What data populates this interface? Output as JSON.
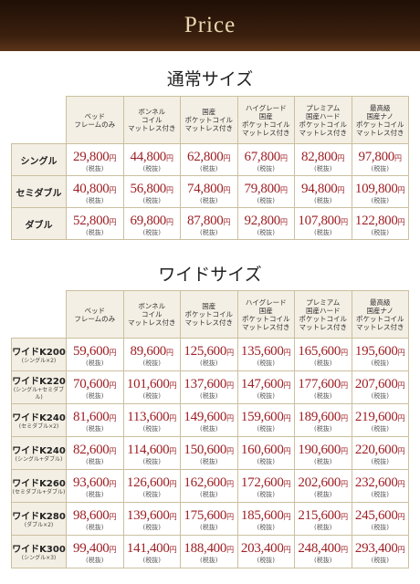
{
  "header": {
    "title": "Price"
  },
  "price_unit": "円",
  "tax_note": "(税抜)",
  "sections": [
    {
      "title": "通常サイズ",
      "columns": [
        "ベッド\nフレームのみ",
        "ボンネル\nコイル\nマットレス付き",
        "国産\nポケットコイル\nマットレス付き",
        "ハイグレード\n国産\nポケットコイル\nマットレス付き",
        "プレミアム\n国産ハード\nポケットコイル\nマットレス付き",
        "最高級\n国産ナノ\nポケットコイル\nマットレス付き"
      ],
      "rows": [
        {
          "label": "シングル",
          "prices": [
            "29,800",
            "44,800",
            "62,800",
            "67,800",
            "82,800",
            "97,800"
          ]
        },
        {
          "label": "セミダブル",
          "prices": [
            "40,800",
            "56,800",
            "74,800",
            "79,800",
            "94,800",
            "109,800"
          ]
        },
        {
          "label": "ダブル",
          "prices": [
            "52,800",
            "69,800",
            "87,800",
            "92,800",
            "107,800",
            "122,800"
          ]
        }
      ]
    },
    {
      "title": "ワイドサイズ",
      "columns": [
        "ベッド\nフレームのみ",
        "ボンネル\nコイル\nマットレス付き",
        "国産\nポケットコイル\nマットレス付き",
        "ハイグレード\n国産\nポケットコイル\nマットレス付き",
        "プレミアム\n国産ハード\nポケットコイル\nマットレス付き",
        "最高級\n国産ナノ\nポケットコイル\nマットレス付き"
      ],
      "rows": [
        {
          "label": "ワイドK200",
          "sublabel": "(シングル×2)",
          "prices": [
            "59,600",
            "89,600",
            "125,600",
            "135,600",
            "165,600",
            "195,600"
          ]
        },
        {
          "label": "ワイドK220",
          "sublabel": "(シングル+セミダブル)",
          "prices": [
            "70,600",
            "101,600",
            "137,600",
            "147,600",
            "177,600",
            "207,600"
          ]
        },
        {
          "label": "ワイドK240",
          "sublabel": "(セミダブル×2)",
          "prices": [
            "81,600",
            "113,600",
            "149,600",
            "159,600",
            "189,600",
            "219,600"
          ]
        },
        {
          "label": "ワイドK240",
          "sublabel": "(シングル+ダブル)",
          "prices": [
            "82,600",
            "114,600",
            "150,600",
            "160,600",
            "190,600",
            "220,600"
          ]
        },
        {
          "label": "ワイドK260",
          "sublabel": "(セミダブル+ダブル)",
          "prices": [
            "93,600",
            "126,600",
            "162,600",
            "172,600",
            "202,600",
            "232,600"
          ]
        },
        {
          "label": "ワイドK280",
          "sublabel": "(ダブル×2)",
          "prices": [
            "98,600",
            "139,600",
            "175,600",
            "185,600",
            "215,600",
            "245,600"
          ]
        },
        {
          "label": "ワイドK300",
          "sublabel": "(シングル×3)",
          "prices": [
            "99,400",
            "141,400",
            "188,400",
            "203,400",
            "248,400",
            "293,400"
          ]
        }
      ]
    }
  ]
}
